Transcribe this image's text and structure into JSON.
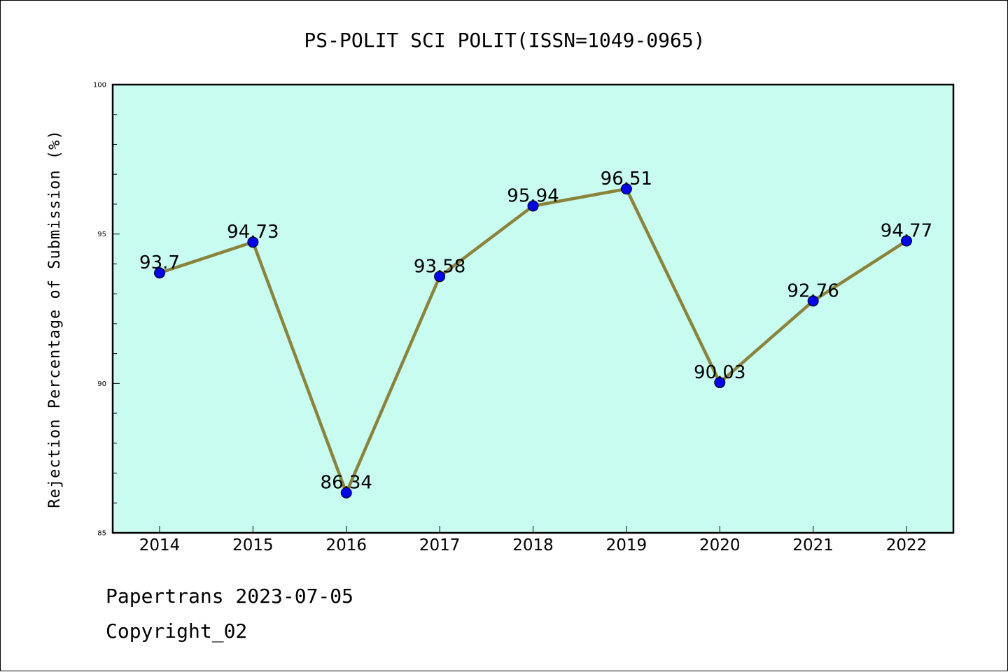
{
  "chart_data": {
    "type": "line",
    "title": "PS-POLIT SCI POLIT(ISSN=1049-0965)",
    "xlabel": "",
    "ylabel": "Rejection Percentage of Submission (%)",
    "categories": [
      "2014",
      "2015",
      "2016",
      "2017",
      "2018",
      "2019",
      "2020",
      "2021",
      "2022"
    ],
    "series": [
      {
        "values": [
          93.7,
          94.73,
          86.34,
          93.58,
          95.94,
          96.51,
          90.03,
          92.76,
          94.77
        ],
        "labels": [
          "93.7",
          "94.73",
          "86.34",
          "93.58",
          "95.94",
          "96.51",
          "90.03",
          "92.76",
          "94.77"
        ]
      }
    ],
    "ylim": [
      85,
      100
    ],
    "yticks": [
      85,
      90,
      95,
      100
    ],
    "grid": false,
    "legend": "none",
    "colors": {
      "plot_background": "#c8fcf0",
      "line": "#8b8339",
      "marker": "#0000ee",
      "marker_edge": "#000000"
    }
  },
  "footer": {
    "line1": "Papertrans 2023-07-05",
    "line2": "Copyright_02"
  }
}
